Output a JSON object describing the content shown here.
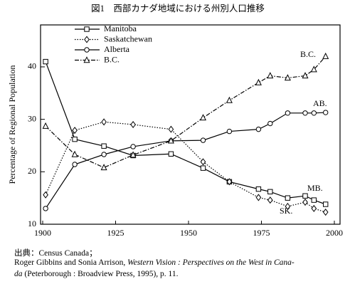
{
  "chart_data": {
    "type": "line",
    "title": "図1　西部カナダ地域における州別人口推移",
    "y_label": "Percentage of Regional Population",
    "x": [
      1901,
      1911,
      1921,
      1931,
      1944,
      1955,
      1964,
      1974,
      1978,
      1984,
      1990,
      1993,
      1997
    ],
    "xlim": [
      1900,
      2000
    ],
    "xticks": [
      1900,
      1925,
      1950,
      1975,
      2000
    ],
    "ylim": [
      10,
      48
    ],
    "yticks": [
      10,
      20,
      30,
      40
    ],
    "series": [
      {
        "name": "Manitoba",
        "color": "#000000",
        "marker": "square",
        "dash": "solid",
        "values": [
          41,
          26.2,
          24.9,
          23.1,
          23.4,
          20.7,
          18.1,
          16.7,
          16.2,
          15.0,
          15.4,
          14.6,
          13.8
        ]
      },
      {
        "name": "Saskatchewan",
        "color": "#000000",
        "marker": "diamond",
        "dash": "dotted",
        "values": [
          15.6,
          27.9,
          29.5,
          29.0,
          28.1,
          21.9,
          18.1,
          15.1,
          14.6,
          13.4,
          14.2,
          13.0,
          12.3
        ]
      },
      {
        "name": "Alberta",
        "color": "#000000",
        "marker": "circle",
        "dash": "solid",
        "values": [
          13.0,
          21.4,
          23.3,
          24.8,
          25.9,
          26.0,
          27.7,
          28.1,
          29.2,
          31.2,
          31.2,
          31.2,
          31.3
        ]
      },
      {
        "name": "B.C.",
        "color": "#000000",
        "marker": "triangle",
        "dash": "dashdot",
        "values": [
          28.7,
          23.3,
          20.8,
          23.2,
          25.9,
          30.3,
          33.6,
          37.0,
          38.3,
          37.9,
          38.3,
          39.5,
          42.0
        ]
      }
    ],
    "annotations": [
      "B.C.",
      "AB.",
      "MB.",
      "SK."
    ],
    "source": {
      "line1": "出典：Census Canada；",
      "line2_author": "Roger Gibbins and Sonia Arrison, ",
      "line2_title": "Western Vision : Perspectives on the West in Cana-",
      "line3_title": "da",
      "line3_rest": " (Peterborough : Broadview Press, 1995), p. 11."
    }
  }
}
